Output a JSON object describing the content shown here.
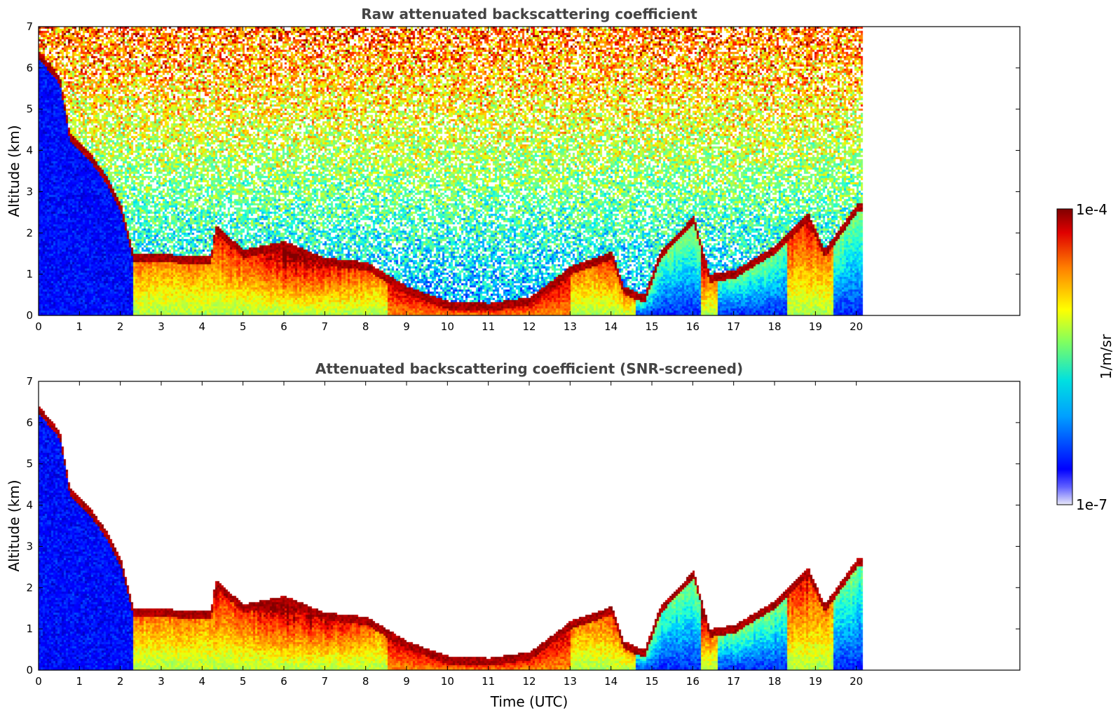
{
  "chart_data": [
    {
      "type": "heatmap",
      "title": "Raw attenuated backscattering coefficient",
      "xlabel": "",
      "ylabel": "Altitude (km)",
      "xlim": [
        0,
        24
      ],
      "ylim": [
        0,
        7
      ],
      "xticks": [
        0,
        1,
        2,
        3,
        4,
        5,
        6,
        7,
        8,
        9,
        10,
        11,
        12,
        13,
        14,
        15,
        16,
        17,
        18,
        19,
        20
      ],
      "yticks": [
        0,
        1,
        2,
        3,
        4,
        5,
        6,
        7
      ],
      "data_end_time": 20.15,
      "screened": false,
      "cloud_layer": [
        [
          0.0,
          6.3
        ],
        [
          0.5,
          5.7
        ],
        [
          0.75,
          4.3
        ],
        [
          1.2,
          3.9
        ],
        [
          1.7,
          3.2
        ],
        [
          2.0,
          2.6
        ],
        [
          2.3,
          1.4
        ],
        [
          4.2,
          1.35
        ],
        [
          4.3,
          2.1
        ],
        [
          5.0,
          1.5
        ],
        [
          6.0,
          1.7
        ],
        [
          7.0,
          1.3
        ],
        [
          8.0,
          1.2
        ],
        [
          9.0,
          0.6
        ],
        [
          10.0,
          0.25
        ],
        [
          11.0,
          0.2
        ],
        [
          12.0,
          0.35
        ],
        [
          13.0,
          1.1
        ],
        [
          14.0,
          1.45
        ],
        [
          14.3,
          0.6
        ],
        [
          14.8,
          0.4
        ],
        [
          15.2,
          1.5
        ],
        [
          16.0,
          2.3
        ],
        [
          16.4,
          0.9
        ],
        [
          17.0,
          1.0
        ],
        [
          18.0,
          1.6
        ],
        [
          18.8,
          2.4
        ],
        [
          19.2,
          1.5
        ],
        [
          20.0,
          2.6
        ],
        [
          20.15,
          2.65
        ]
      ]
    },
    {
      "type": "heatmap",
      "title": "Attenuated backscattering coefficient (SNR-screened)",
      "xlabel": "Time (UTC)",
      "ylabel": "Altitude (km)",
      "xlim": [
        0,
        24
      ],
      "ylim": [
        0,
        7
      ],
      "xticks": [
        0,
        1,
        2,
        3,
        4,
        5,
        6,
        7,
        8,
        9,
        10,
        11,
        12,
        13,
        14,
        15,
        16,
        17,
        18,
        19,
        20
      ],
      "yticks": [
        0,
        1,
        2,
        3,
        4,
        5,
        6,
        7
      ],
      "data_end_time": 20.15,
      "screened": true,
      "cloud_layer": [
        [
          0.0,
          6.3
        ],
        [
          0.5,
          5.7
        ],
        [
          0.75,
          4.3
        ],
        [
          1.2,
          3.9
        ],
        [
          1.7,
          3.2
        ],
        [
          2.0,
          2.6
        ],
        [
          2.3,
          1.4
        ],
        [
          4.2,
          1.35
        ],
        [
          4.3,
          2.1
        ],
        [
          5.0,
          1.5
        ],
        [
          6.0,
          1.7
        ],
        [
          7.0,
          1.3
        ],
        [
          8.0,
          1.2
        ],
        [
          9.0,
          0.6
        ],
        [
          10.0,
          0.25
        ],
        [
          11.0,
          0.2
        ],
        [
          12.0,
          0.35
        ],
        [
          13.0,
          1.1
        ],
        [
          14.0,
          1.45
        ],
        [
          14.3,
          0.6
        ],
        [
          14.8,
          0.4
        ],
        [
          15.2,
          1.5
        ],
        [
          16.0,
          2.3
        ],
        [
          16.4,
          0.9
        ],
        [
          17.0,
          1.0
        ],
        [
          18.0,
          1.6
        ],
        [
          18.8,
          2.4
        ],
        [
          19.2,
          1.5
        ],
        [
          20.0,
          2.6
        ],
        [
          20.15,
          2.65
        ]
      ]
    }
  ],
  "colorbar": {
    "label": "1/m/sr",
    "max_label": "1e-4",
    "min_label": "1e-7",
    "scale": "log",
    "range": [
      1e-07,
      0.0001
    ],
    "colormap": "jet",
    "colors": [
      "#e8e8f8",
      "#0000ff",
      "#00c8ff",
      "#40e8b0",
      "#ffff00",
      "#ff8000",
      "#e00000",
      "#800000"
    ]
  }
}
